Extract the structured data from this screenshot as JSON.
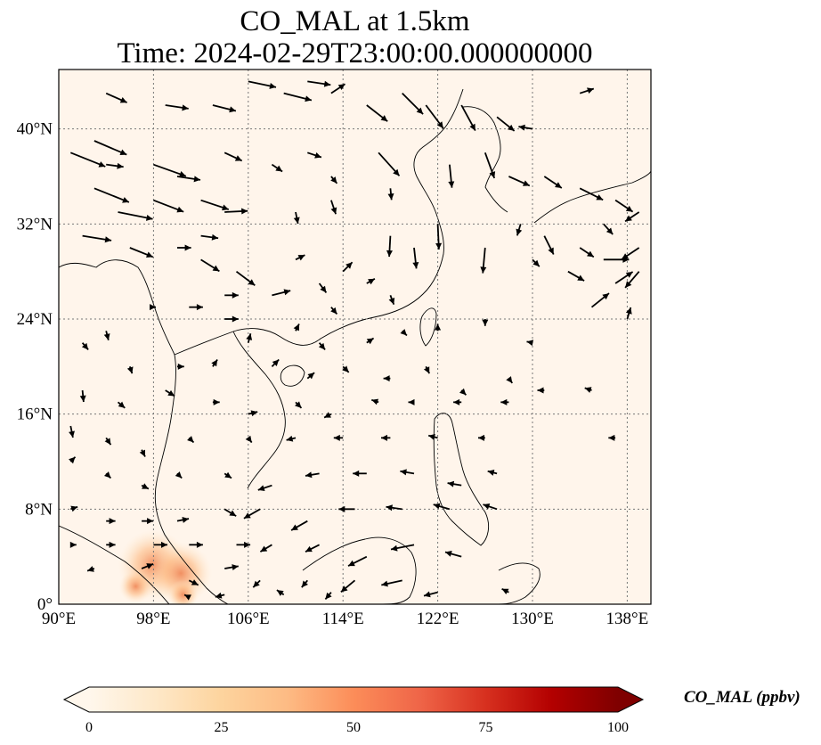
{
  "chart_data": {
    "type": "map-quiver",
    "title_line1": "CO_MAL at 1.5km",
    "title_line2": "Time: 2024-02-29T23:00:00.000000000",
    "xlim": [
      90,
      140
    ],
    "ylim": [
      0,
      45
    ],
    "x_ticks": [
      {
        "value": 90,
        "label": "90°E"
      },
      {
        "value": 98,
        "label": "98°E"
      },
      {
        "value": 106,
        "label": "106°E"
      },
      {
        "value": 114,
        "label": "114°E"
      },
      {
        "value": 122,
        "label": "122°E"
      },
      {
        "value": 130,
        "label": "130°E"
      },
      {
        "value": 138,
        "label": "138°E"
      }
    ],
    "y_ticks": [
      {
        "value": 0,
        "label": "0°"
      },
      {
        "value": 8,
        "label": "8°N"
      },
      {
        "value": 16,
        "label": "16°N"
      },
      {
        "value": 24,
        "label": "24°N"
      },
      {
        "value": 32,
        "label": "32°N"
      },
      {
        "value": 40,
        "label": "40°N"
      }
    ],
    "grid": true,
    "colorbar": {
      "label": "CO_MAL (ppbv)",
      "min": 0,
      "max": 100,
      "ticks": [
        "0",
        "25",
        "50",
        "75",
        "100"
      ],
      "colormap": "OrRd",
      "extend": "both",
      "stops": [
        "#fff7ec",
        "#fee8c8",
        "#fdd49e",
        "#fdbb84",
        "#fc8d59",
        "#ef6548",
        "#d7301f",
        "#b30000",
        "#7f0000"
      ]
    },
    "background_color": "#fff5eb",
    "hotspots": [
      {
        "lon": 98.0,
        "lat": 3.3,
        "value": 35
      },
      {
        "lon": 100.3,
        "lat": 2.6,
        "value": 30
      },
      {
        "lon": 96.5,
        "lat": 1.5,
        "value": 12
      },
      {
        "lon": 100.5,
        "lat": 0.8,
        "value": 10
      }
    ],
    "wind_vectors": [
      {
        "lon": 91,
        "lat": 38,
        "u": 3.0,
        "v": -1.2
      },
      {
        "lon": 93,
        "lat": 39,
        "u": 2.8,
        "v": -1.2
      },
      {
        "lon": 93,
        "lat": 35,
        "u": 3.0,
        "v": -1.2
      },
      {
        "lon": 95,
        "lat": 33,
        "u": 3.0,
        "v": -0.6
      },
      {
        "lon": 94,
        "lat": 37,
        "u": 1.5,
        "v": -0.2
      },
      {
        "lon": 98,
        "lat": 37,
        "u": 2.8,
        "v": -1.0
      },
      {
        "lon": 98,
        "lat": 34,
        "u": 2.6,
        "v": -1.0
      },
      {
        "lon": 100,
        "lat": 36,
        "u": 2.0,
        "v": -0.3
      },
      {
        "lon": 102,
        "lat": 34,
        "u": 2.4,
        "v": -0.8
      },
      {
        "lon": 104,
        "lat": 33,
        "u": 2.0,
        "v": 0.1
      },
      {
        "lon": 104,
        "lat": 38,
        "u": 1.5,
        "v": -0.7
      },
      {
        "lon": 92,
        "lat": 31,
        "u": 2.5,
        "v": -0.4
      },
      {
        "lon": 96,
        "lat": 30,
        "u": 2.0,
        "v": -0.8
      },
      {
        "lon": 100,
        "lat": 30,
        "u": 1.2,
        "v": 0.0
      },
      {
        "lon": 102,
        "lat": 29,
        "u": 1.6,
        "v": -1.0
      },
      {
        "lon": 102,
        "lat": 31,
        "u": 1.5,
        "v": -0.2
      },
      {
        "lon": 94,
        "lat": 43,
        "u": 1.8,
        "v": -0.8
      },
      {
        "lon": 99,
        "lat": 42,
        "u": 2.0,
        "v": -0.3
      },
      {
        "lon": 103,
        "lat": 42,
        "u": 2.0,
        "v": -0.5
      },
      {
        "lon": 106,
        "lat": 44,
        "u": 2.4,
        "v": -0.5
      },
      {
        "lon": 109,
        "lat": 43,
        "u": 2.4,
        "v": -0.6
      },
      {
        "lon": 111,
        "lat": 44,
        "u": 2.0,
        "v": -0.3
      },
      {
        "lon": 113,
        "lat": 43,
        "u": 1.2,
        "v": 0.8
      },
      {
        "lon": 116,
        "lat": 42,
        "u": 1.8,
        "v": -1.4
      },
      {
        "lon": 119,
        "lat": 43,
        "u": 1.8,
        "v": -1.8
      },
      {
        "lon": 121,
        "lat": 42,
        "u": 1.5,
        "v": -2.0
      },
      {
        "lon": 124,
        "lat": 42,
        "u": 1.2,
        "v": -2.2
      },
      {
        "lon": 127,
        "lat": 41,
        "u": 1.5,
        "v": -1.2
      },
      {
        "lon": 130,
        "lat": 40,
        "u": -1.2,
        "v": 0.2
      },
      {
        "lon": 134,
        "lat": 43,
        "u": 1.2,
        "v": 0.4
      },
      {
        "lon": 108,
        "lat": 37,
        "u": 0.9,
        "v": -0.6
      },
      {
        "lon": 111,
        "lat": 38,
        "u": 1.2,
        "v": -0.4
      },
      {
        "lon": 113,
        "lat": 36,
        "u": 0.5,
        "v": -0.6
      },
      {
        "lon": 117,
        "lat": 38,
        "u": 1.8,
        "v": -2.0
      },
      {
        "lon": 118,
        "lat": 35,
        "u": 0.1,
        "v": -1.0
      },
      {
        "lon": 123,
        "lat": 37,
        "u": 0.2,
        "v": -2.0
      },
      {
        "lon": 126,
        "lat": 38,
        "u": 0.8,
        "v": -2.2
      },
      {
        "lon": 128,
        "lat": 36,
        "u": 1.8,
        "v": -0.8
      },
      {
        "lon": 131,
        "lat": 36,
        "u": 1.5,
        "v": -1.0
      },
      {
        "lon": 134,
        "lat": 35,
        "u": 2.0,
        "v": -1.0
      },
      {
        "lon": 137,
        "lat": 34,
        "u": 1.5,
        "v": -1.0
      },
      {
        "lon": 139,
        "lat": 33,
        "u": -1.2,
        "v": -0.8
      },
      {
        "lon": 110,
        "lat": 33,
        "u": 0.2,
        "v": -1.0
      },
      {
        "lon": 113,
        "lat": 34,
        "u": 0.4,
        "v": -1.2
      },
      {
        "lon": 118,
        "lat": 31,
        "u": -0.1,
        "v": -1.8
      },
      {
        "lon": 120,
        "lat": 30,
        "u": 0.2,
        "v": -1.8
      },
      {
        "lon": 122,
        "lat": 32,
        "u": 0.1,
        "v": -2.2
      },
      {
        "lon": 126,
        "lat": 30,
        "u": -0.2,
        "v": -2.2
      },
      {
        "lon": 129,
        "lat": 32,
        "u": -0.3,
        "v": -1.0
      },
      {
        "lon": 131,
        "lat": 31,
        "u": 0.8,
        "v": -1.6
      },
      {
        "lon": 134,
        "lat": 30,
        "u": 1.2,
        "v": -0.8
      },
      {
        "lon": 136,
        "lat": 32,
        "u": 0.8,
        "v": -0.9
      },
      {
        "lon": 136,
        "lat": 29,
        "u": 2.2,
        "v": 0.0
      },
      {
        "lon": 139,
        "lat": 30,
        "u": -1.5,
        "v": -1.0
      },
      {
        "lon": 139,
        "lat": 28,
        "u": -1.2,
        "v": -1.4
      },
      {
        "lon": 137,
        "lat": 27,
        "u": 1.5,
        "v": 1.0
      },
      {
        "lon": 135,
        "lat": 25,
        "u": 1.5,
        "v": 1.2
      },
      {
        "lon": 138,
        "lat": 24,
        "u": 0.3,
        "v": 1.0
      },
      {
        "lon": 133,
        "lat": 28,
        "u": 1.4,
        "v": -0.8
      },
      {
        "lon": 130,
        "lat": 29,
        "u": 0.6,
        "v": -0.6
      },
      {
        "lon": 105,
        "lat": 28,
        "u": 1.6,
        "v": -1.2
      },
      {
        "lon": 108,
        "lat": 26,
        "u": 1.6,
        "v": 0.4
      },
      {
        "lon": 104,
        "lat": 26,
        "u": 1.2,
        "v": 0.0
      },
      {
        "lon": 110,
        "lat": 29,
        "u": 0.8,
        "v": 0.4
      },
      {
        "lon": 112,
        "lat": 27,
        "u": 0.6,
        "v": -0.8
      },
      {
        "lon": 114,
        "lat": 28,
        "u": 0.8,
        "v": 0.8
      },
      {
        "lon": 116,
        "lat": 27,
        "u": 0.7,
        "v": 0.4
      },
      {
        "lon": 113,
        "lat": 25,
        "u": 0.5,
        "v": -0.6
      },
      {
        "lon": 118,
        "lat": 26,
        "u": 0.3,
        "v": -0.8
      },
      {
        "lon": 98,
        "lat": 25,
        "u": 0.2,
        "v": 0.0
      },
      {
        "lon": 101,
        "lat": 25,
        "u": 1.2,
        "v": 0.0
      },
      {
        "lon": 104,
        "lat": 24,
        "u": 1.2,
        "v": 0.0
      },
      {
        "lon": 106,
        "lat": 22,
        "u": 0.2,
        "v": 0.8
      },
      {
        "lon": 110,
        "lat": 23,
        "u": 0.3,
        "v": 0.6
      },
      {
        "lon": 112,
        "lat": 22,
        "u": 0.5,
        "v": -0.6
      },
      {
        "lon": 116,
        "lat": 22,
        "u": 0.6,
        "v": 0.4
      },
      {
        "lon": 119,
        "lat": 23,
        "u": 0.4,
        "v": -0.4
      },
      {
        "lon": 122,
        "lat": 23,
        "u": 0.0,
        "v": 0.6
      },
      {
        "lon": 126,
        "lat": 24,
        "u": 0.0,
        "v": -0.6
      },
      {
        "lon": 130,
        "lat": 22,
        "u": -0.5,
        "v": 0.1
      },
      {
        "lon": 92,
        "lat": 22,
        "u": 0.5,
        "v": -0.6
      },
      {
        "lon": 94,
        "lat": 23,
        "u": 0.2,
        "v": -0.8
      },
      {
        "lon": 96,
        "lat": 20,
        "u": 0.2,
        "v": -0.6
      },
      {
        "lon": 100,
        "lat": 20,
        "u": 0.6,
        "v": 0.0
      },
      {
        "lon": 103,
        "lat": 20,
        "u": 0.4,
        "v": 0.6
      },
      {
        "lon": 108,
        "lat": 20,
        "u": 0.6,
        "v": 0.6
      },
      {
        "lon": 111,
        "lat": 19,
        "u": 0.6,
        "v": 0.5
      },
      {
        "lon": 114,
        "lat": 20,
        "u": 0.5,
        "v": -0.5
      },
      {
        "lon": 118,
        "lat": 19,
        "u": -0.6,
        "v": 0.0
      },
      {
        "lon": 121,
        "lat": 20,
        "u": 0.3,
        "v": -0.6
      },
      {
        "lon": 124,
        "lat": 18,
        "u": 0.4,
        "v": -0.4
      },
      {
        "lon": 128,
        "lat": 19,
        "u": 0.3,
        "v": -0.4
      },
      {
        "lon": 92,
        "lat": 18,
        "u": 0.1,
        "v": -1.0
      },
      {
        "lon": 95,
        "lat": 17,
        "u": 0.6,
        "v": -0.5
      },
      {
        "lon": 99,
        "lat": 18,
        "u": 0.8,
        "v": -0.5
      },
      {
        "lon": 103,
        "lat": 17,
        "u": 0.6,
        "v": 0.0
      },
      {
        "lon": 106,
        "lat": 16,
        "u": 0.8,
        "v": 0.2
      },
      {
        "lon": 110,
        "lat": 17,
        "u": 0.5,
        "v": -0.5
      },
      {
        "lon": 113,
        "lat": 16,
        "u": -0.6,
        "v": -0.3
      },
      {
        "lon": 117,
        "lat": 17,
        "u": -0.6,
        "v": 0.2
      },
      {
        "lon": 120,
        "lat": 17,
        "u": -0.5,
        "v": 0.0
      },
      {
        "lon": 124,
        "lat": 17,
        "u": -0.7,
        "v": 0.0
      },
      {
        "lon": 128,
        "lat": 17,
        "u": -0.7,
        "v": 0.0
      },
      {
        "lon": 131,
        "lat": 18,
        "u": -0.6,
        "v": 0.0
      },
      {
        "lon": 135,
        "lat": 18,
        "u": -0.6,
        "v": 0.2
      },
      {
        "lon": 137,
        "lat": 14,
        "u": -0.6,
        "v": 0.0
      },
      {
        "lon": 91,
        "lat": 15,
        "u": 0.2,
        "v": -1.0
      },
      {
        "lon": 94,
        "lat": 14,
        "u": 0.4,
        "v": -0.6
      },
      {
        "lon": 97,
        "lat": 13,
        "u": 0.3,
        "v": -0.6
      },
      {
        "lon": 101,
        "lat": 14,
        "u": 0.4,
        "v": -0.4
      },
      {
        "lon": 106,
        "lat": 14,
        "u": 0.3,
        "v": -0.4
      },
      {
        "lon": 110,
        "lat": 14,
        "u": -0.8,
        "v": -0.2
      },
      {
        "lon": 114,
        "lat": 14,
        "u": -0.8,
        "v": 0.0
      },
      {
        "lon": 118,
        "lat": 14,
        "u": -0.8,
        "v": 0.0
      },
      {
        "lon": 122,
        "lat": 14,
        "u": -0.8,
        "v": 0.2
      },
      {
        "lon": 126,
        "lat": 14,
        "u": -0.6,
        "v": 0.0
      },
      {
        "lon": 91,
        "lat": 12,
        "u": 0.4,
        "v": 0.4
      },
      {
        "lon": 94,
        "lat": 11,
        "u": 0.4,
        "v": -0.4
      },
      {
        "lon": 97,
        "lat": 10,
        "u": 0.6,
        "v": -0.3
      },
      {
        "lon": 100,
        "lat": 11,
        "u": 0.4,
        "v": -0.4
      },
      {
        "lon": 104,
        "lat": 11,
        "u": 0.6,
        "v": -0.4
      },
      {
        "lon": 108,
        "lat": 10,
        "u": -1.2,
        "v": -0.4
      },
      {
        "lon": 112,
        "lat": 11,
        "u": -1.2,
        "v": -0.2
      },
      {
        "lon": 116,
        "lat": 11,
        "u": -1.2,
        "v": 0.0
      },
      {
        "lon": 120,
        "lat": 11,
        "u": -1.2,
        "v": 0.2
      },
      {
        "lon": 124,
        "lat": 10,
        "u": -1.2,
        "v": 0.2
      },
      {
        "lon": 127,
        "lat": 11,
        "u": -0.8,
        "v": 0.2
      },
      {
        "lon": 91,
        "lat": 8,
        "u": 0.6,
        "v": 0.2
      },
      {
        "lon": 94,
        "lat": 7,
        "u": 0.8,
        "v": 0.0
      },
      {
        "lon": 97,
        "lat": 7,
        "u": 1.0,
        "v": 0.0
      },
      {
        "lon": 100,
        "lat": 7,
        "u": 1.0,
        "v": 0.2
      },
      {
        "lon": 104,
        "lat": 8,
        "u": 1.0,
        "v": -0.6
      },
      {
        "lon": 107,
        "lat": 8,
        "u": -1.4,
        "v": -0.8
      },
      {
        "lon": 111,
        "lat": 7,
        "u": -1.4,
        "v": -0.8
      },
      {
        "lon": 115,
        "lat": 8,
        "u": -1.4,
        "v": 0.0
      },
      {
        "lon": 119,
        "lat": 8,
        "u": -1.4,
        "v": 0.2
      },
      {
        "lon": 123,
        "lat": 8,
        "u": -1.4,
        "v": 0.4
      },
      {
        "lon": 127,
        "lat": 8,
        "u": -1.2,
        "v": 0.4
      },
      {
        "lon": 91,
        "lat": 5,
        "u": 0.5,
        "v": 0.0
      },
      {
        "lon": 94,
        "lat": 5,
        "u": 0.8,
        "v": 0.0
      },
      {
        "lon": 98,
        "lat": 5,
        "u": 1.2,
        "v": 0.0
      },
      {
        "lon": 101,
        "lat": 5,
        "u": 1.2,
        "v": 0.0
      },
      {
        "lon": 105,
        "lat": 5,
        "u": 1.2,
        "v": 0.0
      },
      {
        "lon": 108,
        "lat": 5,
        "u": -1.0,
        "v": -0.6
      },
      {
        "lon": 112,
        "lat": 5,
        "u": -1.2,
        "v": -0.6
      },
      {
        "lon": 116,
        "lat": 4,
        "u": -1.6,
        "v": -0.8
      },
      {
        "lon": 120,
        "lat": 5,
        "u": -2.0,
        "v": -0.4
      },
      {
        "lon": 124,
        "lat": 4,
        "u": -1.4,
        "v": 0.4
      },
      {
        "lon": 93,
        "lat": 3,
        "u": -0.6,
        "v": -0.2
      },
      {
        "lon": 97,
        "lat": 3,
        "u": 1.0,
        "v": 0.4
      },
      {
        "lon": 101,
        "lat": 2,
        "u": 0.8,
        "v": -0.4
      },
      {
        "lon": 104,
        "lat": 3,
        "u": 1.2,
        "v": 0.2
      },
      {
        "lon": 107,
        "lat": 2,
        "u": -0.6,
        "v": -0.6
      },
      {
        "lon": 111,
        "lat": 2,
        "u": -0.5,
        "v": -0.6
      },
      {
        "lon": 115,
        "lat": 2,
        "u": -1.2,
        "v": -1.0
      },
      {
        "lon": 119,
        "lat": 2,
        "u": -1.8,
        "v": -0.4
      },
      {
        "lon": 122,
        "lat": 1,
        "u": -1.2,
        "v": -0.3
      },
      {
        "lon": 128,
        "lat": 1,
        "u": -0.6,
        "v": 0.3
      },
      {
        "lon": 101,
        "lat": 0.6,
        "u": -0.4,
        "v": 0.2
      },
      {
        "lon": 104,
        "lat": 0.8,
        "u": -0.8,
        "v": -0.2
      },
      {
        "lon": 109,
        "lat": 0.8,
        "u": -0.6,
        "v": 0.4
      },
      {
        "lon": 113,
        "lat": 1,
        "u": -0.5,
        "v": -0.6
      }
    ]
  }
}
